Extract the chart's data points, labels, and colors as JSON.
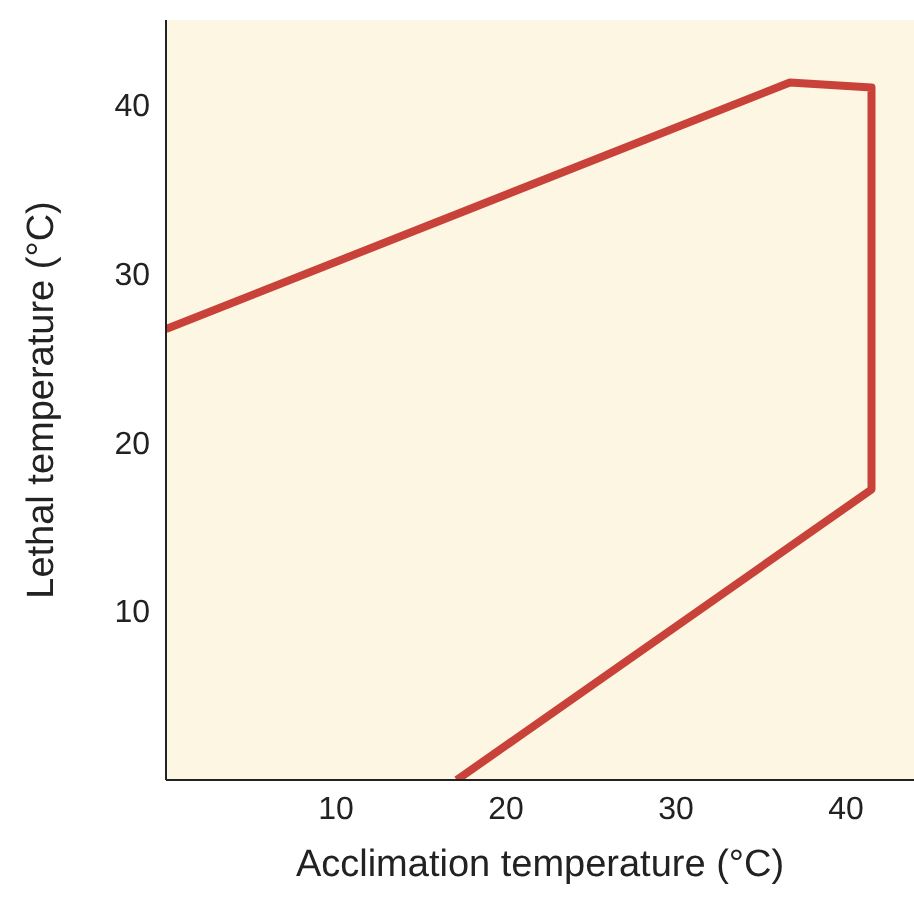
{
  "chart_data": {
    "type": "line",
    "xlabel": "Acclimation temperature (°C)",
    "ylabel": "Lethal temperature (°C)",
    "x": [
      0,
      36.7,
      41.5,
      41.5,
      17.1
    ],
    "series": [
      {
        "color": "#c8423a",
        "values": [
          26.7,
          41.3,
          41.0,
          17.2,
          0
        ]
      }
    ],
    "xlim": [
      0,
      44
    ],
    "xticks": [
      10,
      20,
      30,
      40
    ],
    "ylim": [
      0,
      45
    ],
    "yticks": [
      10,
      20,
      30,
      40
    ],
    "grid": false,
    "marker": "none",
    "line_style": "solid"
  }
}
